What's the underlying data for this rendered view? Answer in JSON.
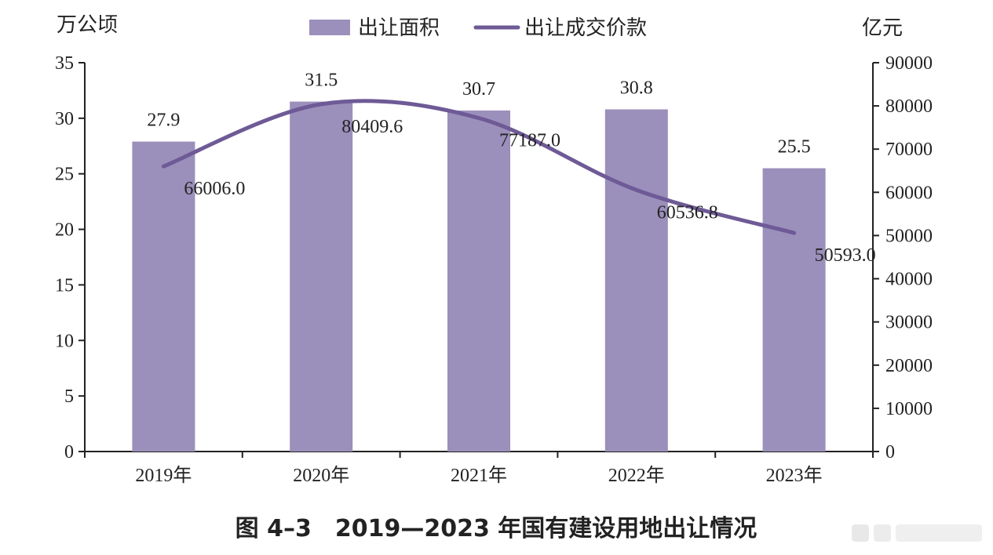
{
  "chart_data": {
    "type": "bar+line",
    "categories": [
      "2019年",
      "2020年",
      "2021年",
      "2022年",
      "2023年"
    ],
    "series": [
      {
        "name": "出让面积",
        "type": "bar",
        "axis": "left",
        "values": [
          27.9,
          31.5,
          30.7,
          30.8,
          25.5
        ],
        "labels": [
          "27.9",
          "31.5",
          "30.7",
          "30.8",
          "25.5"
        ],
        "color": "#9b8fbb"
      },
      {
        "name": "出让成交价款",
        "type": "line",
        "axis": "right",
        "values": [
          66006.0,
          80409.6,
          77187.0,
          60536.8,
          50593.0
        ],
        "labels": [
          "66006.0",
          "80409.6",
          "77187.0",
          "60536.8",
          "50593.0"
        ],
        "color": "#6e5a96"
      }
    ],
    "left_axis": {
      "unit": "万公顷",
      "ylim": [
        0,
        35
      ],
      "ticks": [
        "0",
        "5",
        "10",
        "15",
        "20",
        "25",
        "30",
        "35"
      ]
    },
    "right_axis": {
      "unit": "亿元",
      "ylim": [
        0,
        90000
      ],
      "ticks": [
        "0",
        "10000",
        "20000",
        "30000",
        "40000",
        "50000",
        "60000",
        "70000",
        "80000",
        "90000"
      ]
    },
    "legend_position": "top-center",
    "grid": false
  },
  "caption": "图 4–3　2019—2023 年国有建设用地出让情况"
}
